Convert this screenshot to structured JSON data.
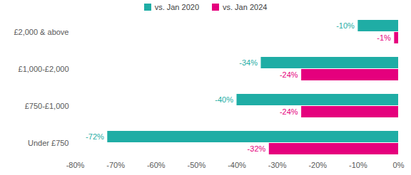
{
  "chart_data": {
    "type": "bar",
    "orientation": "horizontal",
    "categories": [
      "£2,000 & above",
      "£1,000-£2,000",
      "£750-£1,000",
      "Under £750"
    ],
    "series": [
      {
        "name": "vs. Jan 2020",
        "color": "#1fada5",
        "values": [
          -10,
          -34,
          -40,
          -72
        ],
        "value_labels": [
          "-10%",
          "-34%",
          "-40%",
          "-72%"
        ]
      },
      {
        "name": "vs. Jan 2024",
        "color": "#e5007d",
        "values": [
          -1,
          -24,
          -24,
          -32
        ],
        "value_labels": [
          "-1%",
          "-24%",
          "-24%",
          "-32%"
        ]
      }
    ],
    "xlim": [
      -80,
      0
    ],
    "xticks": [
      {
        "value": -80,
        "label": "-80%"
      },
      {
        "value": -70,
        "label": "-70%"
      },
      {
        "value": -60,
        "label": "-60%"
      },
      {
        "value": -50,
        "label": "-50%"
      },
      {
        "value": -40,
        "label": "-40%"
      },
      {
        "value": -30,
        "label": "-30%"
      },
      {
        "value": -20,
        "label": "-20%"
      },
      {
        "value": -10,
        "label": "-10%"
      },
      {
        "value": 0,
        "label": "0%"
      }
    ],
    "grid": false,
    "legend": "top",
    "data_labels": true
  }
}
